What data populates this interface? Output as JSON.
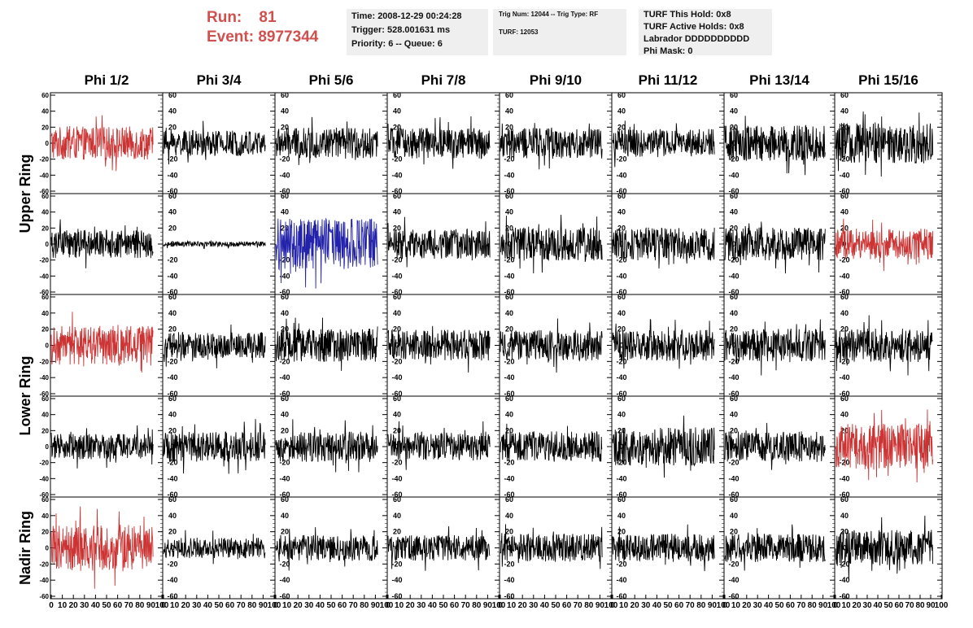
{
  "header": {
    "run_label": "Run:",
    "run_value": "81",
    "event_label": "Event:",
    "event_value": "8977344"
  },
  "info_box_1": {
    "time": "Time: 2008-12-29 00:24:28",
    "trigger": "Trigger: 528.001631 ms",
    "priority": "Priority: 6 -- Queue: 6"
  },
  "info_box_2": {
    "trig": "Trig Num: 12044 -- Trig Type: RF",
    "turf": "TURF: 12053"
  },
  "info_box_3": {
    "this_hold": "TURF This Hold: 0x8",
    "active_holds": "TURF Active Holds: 0x8",
    "labrador": "Labrador DDDDDDDDDD",
    "phi_mask": "Phi Mask: 0"
  },
  "chart_data": {
    "type": "line",
    "columns": [
      "Phi 1/2",
      "Phi 3/4",
      "Phi 5/6",
      "Phi 7/8",
      "Phi 9/10",
      "Phi 11/12",
      "Phi 13/14",
      "Phi 15/16"
    ],
    "ring_labels": [
      "Upper Ring",
      "Lower Ring",
      "Nadir Ring"
    ],
    "rows": 5,
    "ylim": [
      -60,
      60
    ],
    "y_ticks": [
      -60,
      -40,
      -20,
      0,
      20,
      40,
      60
    ],
    "xlim": [
      0,
      100
    ],
    "x_ticks": [
      0,
      10,
      20,
      30,
      40,
      50,
      60,
      70,
      80,
      90,
      100
    ],
    "samples_per_trace": 90,
    "colors": {
      "red": "#cc3333",
      "blue": "#2222aa",
      "black": "#000000"
    },
    "traces": [
      {
        "row": 0,
        "col": 0,
        "color": "red",
        "amplitude": 13
      },
      {
        "row": 0,
        "col": 1,
        "color": "black",
        "amplitude": 10
      },
      {
        "row": 0,
        "col": 2,
        "color": "black",
        "amplitude": 12
      },
      {
        "row": 0,
        "col": 3,
        "color": "black",
        "amplitude": 12
      },
      {
        "row": 0,
        "col": 4,
        "color": "black",
        "amplitude": 12
      },
      {
        "row": 0,
        "col": 5,
        "color": "black",
        "amplitude": 11
      },
      {
        "row": 0,
        "col": 6,
        "color": "black",
        "amplitude": 14
      },
      {
        "row": 0,
        "col": 7,
        "color": "black",
        "amplitude": 16
      },
      {
        "row": 1,
        "col": 0,
        "color": "black",
        "amplitude": 11
      },
      {
        "row": 1,
        "col": 1,
        "color": "black",
        "amplitude": 2
      },
      {
        "row": 1,
        "col": 2,
        "color": "blue",
        "amplitude": 20
      },
      {
        "row": 1,
        "col": 3,
        "color": "black",
        "amplitude": 12
      },
      {
        "row": 1,
        "col": 4,
        "color": "black",
        "amplitude": 13
      },
      {
        "row": 1,
        "col": 5,
        "color": "black",
        "amplitude": 13
      },
      {
        "row": 1,
        "col": 6,
        "color": "black",
        "amplitude": 13
      },
      {
        "row": 1,
        "col": 7,
        "color": "red",
        "amplitude": 12
      },
      {
        "row": 2,
        "col": 0,
        "color": "red",
        "amplitude": 15
      },
      {
        "row": 2,
        "col": 1,
        "color": "black",
        "amplitude": 10
      },
      {
        "row": 2,
        "col": 2,
        "color": "black",
        "amplitude": 13
      },
      {
        "row": 2,
        "col": 3,
        "color": "black",
        "amplitude": 12
      },
      {
        "row": 2,
        "col": 4,
        "color": "black",
        "amplitude": 12
      },
      {
        "row": 2,
        "col": 5,
        "color": "black",
        "amplitude": 12
      },
      {
        "row": 2,
        "col": 6,
        "color": "black",
        "amplitude": 13
      },
      {
        "row": 2,
        "col": 7,
        "color": "black",
        "amplitude": 13
      },
      {
        "row": 3,
        "col": 0,
        "color": "black",
        "amplitude": 10
      },
      {
        "row": 3,
        "col": 1,
        "color": "black",
        "amplitude": 12
      },
      {
        "row": 3,
        "col": 2,
        "color": "black",
        "amplitude": 12
      },
      {
        "row": 3,
        "col": 3,
        "color": "black",
        "amplitude": 11
      },
      {
        "row": 3,
        "col": 4,
        "color": "black",
        "amplitude": 12
      },
      {
        "row": 3,
        "col": 5,
        "color": "black",
        "amplitude": 15
      },
      {
        "row": 3,
        "col": 6,
        "color": "black",
        "amplitude": 12
      },
      {
        "row": 3,
        "col": 7,
        "color": "red",
        "amplitude": 18
      },
      {
        "row": 4,
        "col": 0,
        "color": "red",
        "amplitude": 18
      },
      {
        "row": 4,
        "col": 1,
        "color": "black",
        "amplitude": 8
      },
      {
        "row": 4,
        "col": 2,
        "color": "black",
        "amplitude": 10
      },
      {
        "row": 4,
        "col": 3,
        "color": "black",
        "amplitude": 10
      },
      {
        "row": 4,
        "col": 4,
        "color": "black",
        "amplitude": 11
      },
      {
        "row": 4,
        "col": 5,
        "color": "black",
        "amplitude": 11
      },
      {
        "row": 4,
        "col": 6,
        "color": "black",
        "amplitude": 11
      },
      {
        "row": 4,
        "col": 7,
        "color": "black",
        "amplitude": 14
      }
    ]
  }
}
